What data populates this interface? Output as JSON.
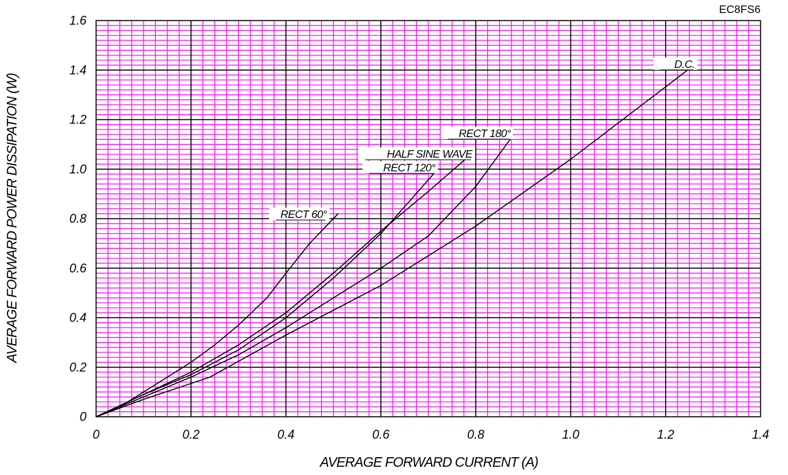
{
  "chart_data": {
    "type": "line",
    "code": "EC8FS6",
    "xlabel": "AVERAGE FORWARD CURRENT (A)",
    "ylabel": "AVERAGE FORWARD POWER DISSIPATION (W)",
    "xlim": [
      0,
      1.4
    ],
    "ylim": [
      0,
      1.6
    ],
    "xticks": [
      "0",
      "0.2",
      "0.4",
      "0.6",
      "0.8",
      "1.0",
      "1.2",
      "1.4"
    ],
    "yticks": [
      "0",
      "0.2",
      "0.4",
      "0.6",
      "0.8",
      "1.0",
      "1.2",
      "1.4",
      "1.6"
    ],
    "grid": true,
    "grid_colors": {
      "major": "#000000",
      "minor": "#ff00ff"
    },
    "series": [
      {
        "name": "RECT 60°",
        "x": [
          0,
          0.05,
          0.1,
          0.15,
          0.2,
          0.25,
          0.3,
          0.36,
          0.4,
          0.45,
          0.51
        ],
        "y": [
          0,
          0.04,
          0.1,
          0.16,
          0.22,
          0.29,
          0.37,
          0.48,
          0.58,
          0.7,
          0.82
        ]
      },
      {
        "name": "HALF SINE WAVE",
        "x": [
          0,
          0.1,
          0.2,
          0.3,
          0.4,
          0.5,
          0.6,
          0.7,
          0.79
        ],
        "y": [
          0,
          0.09,
          0.18,
          0.29,
          0.42,
          0.58,
          0.75,
          0.91,
          1.06
        ]
      },
      {
        "name": "RECT 120°",
        "x": [
          0,
          0.1,
          0.2,
          0.3,
          0.4,
          0.5,
          0.6,
          0.72
        ],
        "y": [
          0,
          0.09,
          0.17,
          0.27,
          0.4,
          0.56,
          0.74,
          1.0
        ]
      },
      {
        "name": "RECT 180°",
        "x": [
          0,
          0.1,
          0.2,
          0.3,
          0.4,
          0.5,
          0.6,
          0.7,
          0.8,
          0.88
        ],
        "y": [
          0,
          0.08,
          0.16,
          0.25,
          0.36,
          0.48,
          0.6,
          0.73,
          0.93,
          1.14
        ]
      },
      {
        "name": "D.C.",
        "x": [
          0,
          0.1,
          0.24,
          0.4,
          0.6,
          0.8,
          1.0,
          1.26
        ],
        "y": [
          0,
          0.07,
          0.16,
          0.33,
          0.53,
          0.77,
          1.04,
          1.42
        ]
      }
    ]
  }
}
